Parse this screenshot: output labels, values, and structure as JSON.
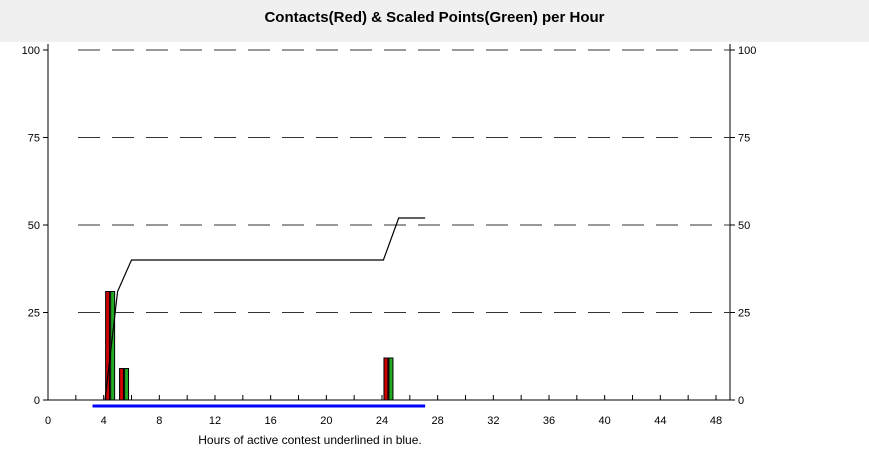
{
  "chart_data": {
    "type": "bar",
    "title": "Contacts(Red) & Scaled Points(Green) per Hour",
    "xlabel": "Hours of active contest underlined in blue.",
    "ylabel": "",
    "xlim": [
      0,
      48
    ],
    "ylim": [
      0,
      100
    ],
    "x_ticks": [
      0,
      4,
      8,
      12,
      16,
      20,
      24,
      28,
      32,
      36,
      40,
      44,
      48
    ],
    "y_ticks": [
      0,
      25,
      50,
      75,
      100
    ],
    "grid": "dashed horizontal",
    "series": [
      {
        "name": "Contacts",
        "color": "#cc0000",
        "x": [
          4.5,
          5.5,
          24.5
        ],
        "values": [
          31,
          9,
          12
        ]
      },
      {
        "name": "Scaled Points",
        "color": "#22aa22",
        "x": [
          4.5,
          5.5,
          24.5
        ],
        "values": [
          31,
          9,
          12
        ]
      }
    ],
    "cumulative_line": {
      "color": "#000000",
      "points": [
        [
          4.1,
          0
        ],
        [
          5,
          31
        ],
        [
          6,
          40
        ],
        [
          24.1,
          40
        ],
        [
          25.2,
          52
        ],
        [
          27.1,
          52
        ]
      ]
    },
    "active_period": {
      "color": "#0000ff",
      "range": [
        3.2,
        27.1
      ]
    }
  }
}
